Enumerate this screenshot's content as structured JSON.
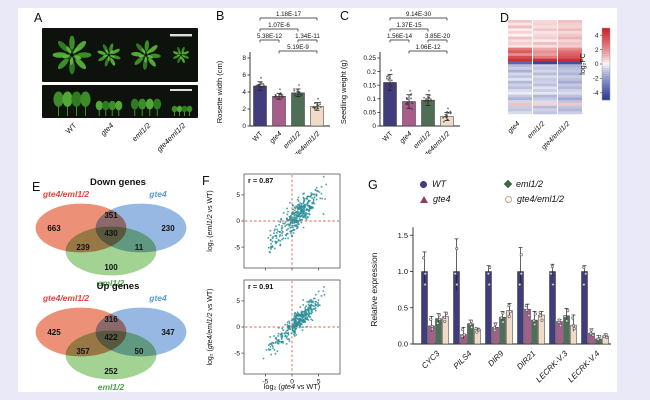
{
  "panels": {
    "a": "A",
    "b": "B",
    "c": "C",
    "d": "D",
    "e": "E",
    "f": "F",
    "g": "G"
  },
  "colors": {
    "background": "#e9e9f7",
    "paper": "#ffffff",
    "wt_bar": "#413c7c",
    "gte4_bar": "#a65d8a",
    "eml12_bar": "#4e6e55",
    "double_bar": "#f0dac8",
    "scatter": "#2d8e98",
    "dashed": "#e0604f",
    "venn_red": "#e8795a",
    "venn_blue": "#7fa8dc",
    "venn_green": "#8fc97a",
    "label_red": "#e2453c",
    "label_blue": "#5b9bd5",
    "label_green": "#4ea34e"
  },
  "panel_a": {
    "labels": [
      "WT",
      "gte4",
      "eml1/2",
      "gte4eml1/2"
    ]
  },
  "chart_data": [
    {
      "id": "rosette_width",
      "type": "bar",
      "ylabel": "Rosette width (cm)",
      "categories": [
        "WT",
        "gte4",
        "eml1/2",
        "gte4eml1/2"
      ],
      "values": [
        4.7,
        3.5,
        3.9,
        2.3
      ],
      "errors": [
        0.5,
        0.35,
        0.45,
        0.45
      ],
      "ylim": [
        0,
        8
      ],
      "yticks": [
        0,
        2,
        4,
        6,
        8
      ],
      "ytick_labels": [
        "0",
        "2",
        "4",
        "6",
        "8"
      ],
      "bar_colors": [
        "#413c7c",
        "#a65d8a",
        "#4e6e55",
        "#f0dac8"
      ],
      "pvalue_brackets": [
        {
          "label": "1.18E-17",
          "from": 0,
          "to": 3,
          "level": 0
        },
        {
          "label": "1.07E-6",
          "from": 0,
          "to": 2,
          "level": 1
        },
        {
          "label": "5.38E-12",
          "from": 0,
          "to": 1,
          "level": 2
        },
        {
          "label": "1.34E-11",
          "from": 2,
          "to": 3,
          "level": 2
        },
        {
          "label": "5.19E-9",
          "from": 1,
          "to": 3,
          "level": 3
        }
      ]
    },
    {
      "id": "seedling_weight",
      "type": "bar",
      "ylabel": "Seedling weight (g)",
      "categories": [
        "WT",
        "gte4",
        "eml1/2",
        "gte4eml1/2"
      ],
      "values": [
        0.16,
        0.09,
        0.095,
        0.035
      ],
      "errors": [
        0.03,
        0.025,
        0.02,
        0.015
      ],
      "ylim": [
        0,
        0.25
      ],
      "yticks": [
        0,
        0.05,
        0.1,
        0.15,
        0.2,
        0.25
      ],
      "ytick_labels": [
        "0",
        "0.05",
        "0.1",
        "0.15",
        "0.2",
        "0.25"
      ],
      "bar_colors": [
        "#413c7c",
        "#a65d8a",
        "#4e6e55",
        "#f0dac8"
      ],
      "pvalue_brackets": [
        {
          "label": "9.14E-30",
          "from": 0,
          "to": 3,
          "level": 0
        },
        {
          "label": "1.37E-15",
          "from": 0,
          "to": 2,
          "level": 1
        },
        {
          "label": "1.56E-14",
          "from": 0,
          "to": 1,
          "level": 2
        },
        {
          "label": "3.85E-20",
          "from": 2,
          "to": 3,
          "level": 2
        },
        {
          "label": "1.06E-12",
          "from": 1,
          "to": 3,
          "level": 3
        }
      ]
    },
    {
      "id": "deg_heatmap",
      "type": "heatmap",
      "columns": [
        "gte4",
        "eml1/2",
        "gte4/eml1/2"
      ],
      "colorbar_label": "log₂FC",
      "colorbar_ticks": [
        4,
        2,
        0,
        -2,
        -4
      ],
      "vmin": -5,
      "vmax": 5,
      "rows": [
        [
          0.8,
          0.5,
          0.9
        ],
        [
          0.3,
          0.6,
          0.7
        ],
        [
          1.0,
          0.4,
          0.6
        ],
        [
          0.2,
          0.8,
          1.0
        ],
        [
          0.6,
          0.3,
          0.5
        ],
        [
          0.1,
          0.5,
          0.8
        ],
        [
          0.9,
          0.7,
          1.2
        ],
        [
          0.4,
          0.2,
          0.6
        ],
        [
          0.7,
          1.0,
          0.9
        ],
        [
          0.3,
          0.4,
          0.7
        ],
        [
          2.6,
          1.4,
          2.1
        ],
        [
          3.4,
          2.0,
          2.9
        ],
        [
          2.1,
          1.7,
          3.3
        ],
        [
          3.8,
          2.6,
          3.6
        ],
        [
          4.6,
          4.8,
          4.7
        ],
        [
          -3.6,
          -4.6,
          -4.3
        ],
        [
          -1.2,
          -0.8,
          -1.5
        ],
        [
          -0.8,
          -1.0,
          -1.2
        ],
        [
          -1.5,
          -0.6,
          -1.0
        ],
        [
          -0.6,
          -1.2,
          -1.4
        ],
        [
          -1.0,
          -0.5,
          -0.8
        ],
        [
          -0.4,
          -0.9,
          -1.1
        ],
        [
          -1.3,
          -0.7,
          -1.6
        ],
        [
          -0.7,
          -1.1,
          -0.9
        ],
        [
          -1.1,
          -0.4,
          -1.3
        ],
        [
          -0.5,
          -0.8,
          -0.7
        ],
        [
          -0.2,
          -0.3,
          -0.5
        ],
        [
          -0.9,
          -1.3,
          -1.1
        ],
        [
          -1.4,
          -0.9,
          -1.7
        ],
        [
          -0.6,
          -0.5,
          -1.0
        ],
        [
          0.9,
          0.6,
          0.8
        ],
        [
          -0.8,
          -1.2,
          -1.0
        ],
        [
          -1.0,
          -0.7,
          -1.3
        ],
        [
          -0.5,
          -1.0,
          -0.8
        ]
      ]
    },
    {
      "id": "venn_down_genes",
      "type": "venn",
      "title": "Down genes",
      "sets": [
        "gte4/eml1/2",
        "gte4",
        "eml1/2"
      ],
      "counts": {
        "a_only": 663,
        "b_only": 230,
        "c_only": 100,
        "ab": 351,
        "ac": 239,
        "bc": 11,
        "abc": 430
      }
    },
    {
      "id": "venn_up_genes",
      "type": "venn",
      "title": "Up genes",
      "sets": [
        "gte4/eml1/2",
        "gte4",
        "eml1/2"
      ],
      "counts": {
        "a_only": 425,
        "b_only": 347,
        "c_only": 252,
        "ab": 316,
        "ac": 357,
        "bc": 50,
        "abc": 422
      }
    },
    {
      "id": "scatter_eml12_vs_wt",
      "type": "scatter",
      "r_label": "r = 0.87",
      "ylabel": {
        "prefix": "log₂ (",
        "gene": "eml1/2",
        "suffix": " vs WT)"
      },
      "xticks": [
        -5,
        0,
        5
      ],
      "yticks": [
        -5,
        0,
        5
      ],
      "xlim": [
        -9,
        9
      ],
      "ylim": [
        -9,
        9
      ]
    },
    {
      "id": "scatter_gte4eml12_vs_wt",
      "type": "scatter",
      "r_label": "r = 0.91",
      "ylabel": {
        "prefix": "log₂ (",
        "gene": "gte4/eml1/2",
        "suffix": " vs WT)"
      },
      "xlabel": {
        "prefix": "log₂ (",
        "gene": "gte4",
        "suffix": " vs WT)"
      },
      "xticks": [
        -5,
        0,
        5
      ],
      "yticks": [
        -5,
        0,
        5
      ],
      "xlim": [
        -9,
        9
      ],
      "ylim": [
        -9,
        9
      ]
    },
    {
      "id": "relative_expression",
      "type": "grouped_bar",
      "ylabel": "Relative expression",
      "categories": [
        "CYC3",
        "PILS4",
        "DIR9",
        "DIR21",
        "LECRK-V.3",
        "LECRK-V.4"
      ],
      "ylim": [
        0,
        1.6
      ],
      "yticks": [
        0,
        0.5,
        1.0,
        1.5
      ],
      "ytick_labels": [
        "0.0",
        "0.5",
        "1.0",
        "1.5"
      ],
      "series": [
        {
          "name": "WT",
          "marker": "circle",
          "color": "#413c7c",
          "values": [
            1.0,
            1.0,
            1.0,
            1.0,
            1.0,
            1.0
          ],
          "errors": [
            0.27,
            0.45,
            0.08,
            0.33,
            0.1,
            0.08
          ]
        },
        {
          "name": "gte4",
          "marker": "triangle",
          "color": "#a65d8a",
          "values": [
            0.25,
            0.13,
            0.23,
            0.48,
            0.31,
            0.15
          ],
          "errors": [
            0.13,
            0.1,
            0.06,
            0.07,
            0.03,
            0.06
          ]
        },
        {
          "name": "eml1/2",
          "marker": "diamond",
          "color": "#4e6e55",
          "values": [
            0.35,
            0.28,
            0.37,
            0.33,
            0.39,
            0.07
          ],
          "errors": [
            0.07,
            0.05,
            0.08,
            0.12,
            0.1,
            0.05
          ]
        },
        {
          "name": "gte4/eml1/2",
          "marker": "open-circle",
          "color": "#f0dac8",
          "values": [
            0.38,
            0.2,
            0.46,
            0.4,
            0.26,
            0.11
          ],
          "errors": [
            0.06,
            0.02,
            0.1,
            0.05,
            0.14,
            0.03
          ]
        }
      ]
    }
  ]
}
